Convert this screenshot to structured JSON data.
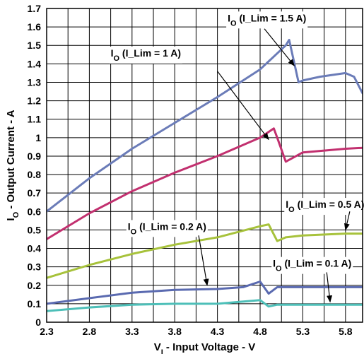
{
  "chart_data": {
    "type": "line",
    "xlabel": {
      "main": "V",
      "sub": "I",
      "rest": " - Input Voltage - V"
    },
    "ylabel": {
      "main": "I",
      "sub": "O",
      "rest": " - Output Current - A"
    },
    "xlim": [
      2.3,
      6.0
    ],
    "ylim": [
      0,
      1.7
    ],
    "xticks": [
      2.3,
      2.8,
      3.3,
      3.8,
      4.3,
      4.8,
      5.3,
      5.8
    ],
    "yticks": [
      0,
      0.1,
      0.2,
      0.3,
      0.4,
      0.5,
      0.6,
      0.7,
      0.8,
      0.9,
      1,
      1.1,
      1.2,
      1.3,
      1.4,
      1.5,
      1.6,
      1.7
    ],
    "xtick_labels": [
      "2.3",
      "2.8",
      "3.3",
      "3.8",
      "4.3",
      "4.8",
      "5.3",
      "5.8"
    ],
    "ytick_labels": [
      "0",
      "0.1",
      "0.2",
      "0.3",
      "0.4",
      "0.5",
      "0.6",
      "0.7",
      "0.8",
      "0.9",
      "1",
      "1.1",
      "1.2",
      "1.3",
      "1.4",
      "1.5",
      "1.6",
      "1.7"
    ],
    "grid": true,
    "series": [
      {
        "name": "IO (I_Lim = 1.5 A)",
        "label": {
          "main": "I",
          "sub": "O",
          "rest": " (I_Lim = 1.5 A)"
        },
        "color": "#6b7cb8",
        "x": [
          2.3,
          2.8,
          3.3,
          3.8,
          4.3,
          4.8,
          5.1,
          5.14,
          5.25,
          5.3,
          5.5,
          5.8,
          5.9,
          6.0
        ],
        "y": [
          0.6,
          0.78,
          0.94,
          1.08,
          1.22,
          1.37,
          1.5,
          1.53,
          1.3,
          1.31,
          1.33,
          1.35,
          1.33,
          1.24
        ]
      },
      {
        "name": "IO (I_Lim = 1 A)",
        "label": {
          "main": "I",
          "sub": "O",
          "rest": " (I_Lim = 1 A)"
        },
        "color": "#c2306f",
        "x": [
          2.3,
          2.8,
          3.3,
          3.8,
          4.3,
          4.8,
          4.96,
          5.0,
          5.1,
          5.3,
          5.8,
          6.0
        ],
        "y": [
          0.45,
          0.59,
          0.71,
          0.81,
          0.9,
          1.0,
          1.05,
          1.0,
          0.87,
          0.92,
          0.94,
          0.945
        ]
      },
      {
        "name": "IO (I_Lim = 0.5 A)",
        "label": {
          "main": "I",
          "sub": "O",
          "rest": " (I_Lim = 0.5 A)"
        },
        "color": "#a7c23b",
        "x": [
          2.3,
          2.8,
          3.3,
          3.8,
          4.3,
          4.8,
          4.9,
          5.0,
          5.1,
          5.3,
          5.8,
          6.0
        ],
        "y": [
          0.24,
          0.31,
          0.37,
          0.42,
          0.46,
          0.52,
          0.53,
          0.44,
          0.46,
          0.47,
          0.48,
          0.48
        ]
      },
      {
        "name": "IO (I_Lim = 0.2 A)",
        "label": {
          "main": "I",
          "sub": "O",
          "rest": " (I_Lim = 0.2 A)"
        },
        "color": "#5a6ab0",
        "x": [
          2.3,
          2.8,
          3.3,
          3.8,
          4.3,
          4.6,
          4.8,
          4.9,
          5.0,
          5.3,
          5.8,
          6.0
        ],
        "y": [
          0.1,
          0.13,
          0.16,
          0.175,
          0.18,
          0.19,
          0.22,
          0.155,
          0.19,
          0.19,
          0.19,
          0.19
        ]
      },
      {
        "name": "IO (I_Lim = 0.1 A)",
        "label": {
          "main": "I",
          "sub": "O",
          "rest": " (I_Lim = 0.1 A)"
        },
        "color": "#4dbfb8",
        "x": [
          2.3,
          2.8,
          3.3,
          3.8,
          4.3,
          4.8,
          4.9,
          5.0,
          5.3,
          5.8,
          6.0
        ],
        "y": [
          0.06,
          0.08,
          0.095,
          0.1,
          0.1,
          0.12,
          0.085,
          0.095,
          0.095,
          0.095,
          0.095
        ]
      }
    ],
    "annotations": [
      {
        "series": 0,
        "text": {
          "main": "I",
          "sub": "O",
          "rest": " (I_Lim = 1.5 A)"
        },
        "text_x": 4.42,
        "text_y": 1.63,
        "arrow_from": [
          4.85,
          1.59
        ],
        "arrow_to": [
          5.2,
          1.39
        ]
      },
      {
        "series": 1,
        "text": {
          "main": "I",
          "sub": "O",
          "rest": " (I_Lim = 1 A)"
        },
        "text_x": 3.05,
        "text_y": 1.44,
        "arrow_from": [
          4.3,
          1.36
        ],
        "arrow_to": [
          4.9,
          0.99
        ]
      },
      {
        "series": 2,
        "text": {
          "main": "I",
          "sub": "O",
          "rest": " (I_Lim = 0.5 A)"
        },
        "text_x": 5.1,
        "text_y": 0.62,
        "arrow_from": [
          5.85,
          0.6
        ],
        "arrow_to": [
          5.8,
          0.5
        ]
      },
      {
        "series": 3,
        "text": {
          "main": "I",
          "sub": "O",
          "rest": " (I_Lim = 0.2 A)"
        },
        "text_x": 3.25,
        "text_y": 0.5,
        "arrow_from": [
          4.08,
          0.47
        ],
        "arrow_to": [
          4.18,
          0.2
        ]
      },
      {
        "series": 4,
        "text": {
          "main": "I",
          "sub": "O",
          "rest": " (I_Lim = 0.1 A)"
        },
        "text_x": 4.95,
        "text_y": 0.3,
        "arrow_from": [
          5.58,
          0.27
        ],
        "arrow_to": [
          5.62,
          0.11
        ]
      }
    ]
  }
}
